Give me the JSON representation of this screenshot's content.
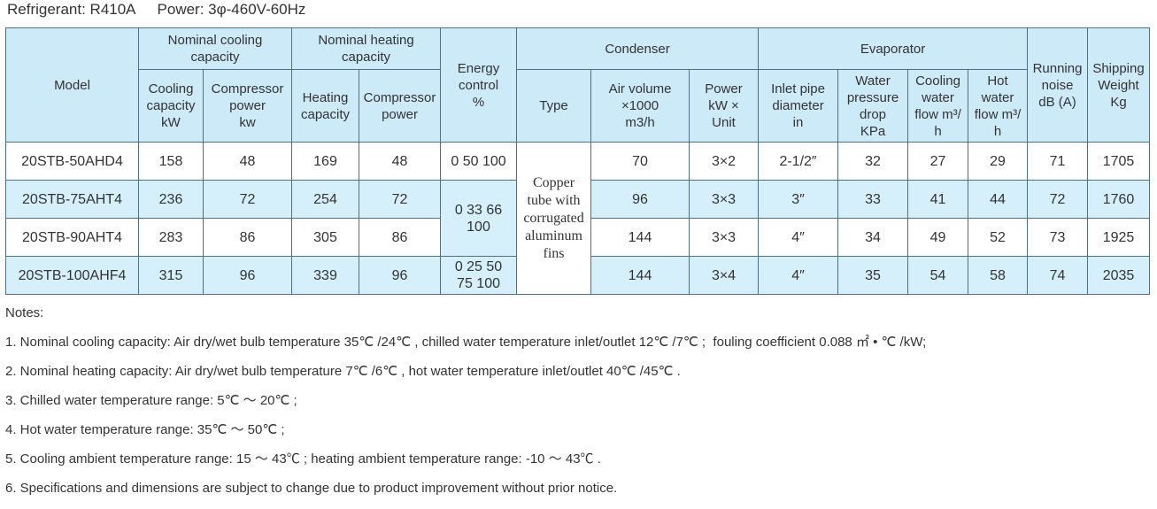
{
  "header": {
    "refrigerant": "Refrigerant: R410A",
    "power": "Power: 3φ-460V-60Hz"
  },
  "table": {
    "header": [
      [
        "Model",
        "Nominal cooling\ncapacity",
        "Nominal heating\ncapacity",
        "Energy\ncontrol\n%",
        "Condenser",
        "Evaporator",
        "Running\nnoise\ndB (A)",
        "Shipping\nWeight\nKg"
      ],
      [
        "Cooling\ncapacity\nkW",
        "Compressor\npower\nkw",
        "Heating\ncapacity",
        "Compressor\npower",
        "Type",
        "Air volume\n×1000\nm3/h",
        "Power\nkW ×\nUnit",
        "Inlet pipe\ndiameter\nin",
        "Water\npressure\ndrop\nKPa",
        "Cooling\nwater\nflow m³/\nh",
        "Hot\nwater\nflow m³/\nh"
      ]
    ],
    "rows": [
      [
        "20STB-50AHD4",
        158,
        48,
        169,
        48,
        "0 50 100",
        "Copper\ntube with\ncorrugated\naluminum\nfins",
        70,
        "3×2",
        "2-1/2″",
        32,
        27,
        29,
        71,
        1705
      ],
      [
        "20STB-75AHT4",
        236,
        72,
        254,
        72,
        "0 33 66\n100",
        96,
        "3×3",
        "3″",
        33,
        41,
        44,
        72,
        1760
      ],
      [
        "20STB-90AHT4",
        283,
        86,
        305,
        86,
        144,
        "3×3",
        "4″",
        34,
        49,
        52,
        73,
        1925
      ],
      [
        "20STB-100AHF4",
        315,
        96,
        339,
        96,
        "0  25  50\n75  100",
        144,
        "3×4",
        "4″",
        35,
        54,
        58,
        74,
        2035
      ]
    ]
  },
  "notes": {
    "heading": "Notes:",
    "items": [
      "1. Nominal cooling capacity: Air dry/wet bulb temperature 35℃ /24℃ , chilled water temperature inlet/outlet 12℃ /7℃ ;  fouling coefficient 0.088 ㎡ • ℃ /kW;",
      "2. Nominal heating capacity: Air dry/wet bulb temperature 7℃ /6℃ , hot water temperature inlet/outlet 40℃ /45℃ .",
      "3. Chilled water temperature range: 5℃ ～ 20℃ ;",
      "4. Hot water temperature range: 35℃ ～ 50℃ ;",
      "5. Cooling ambient temperature range: 15 ～ 43℃ ; heating ambient temperature range: -10 ～ 43℃ .",
      "6. Specifications and dimensions are subject to change due to product improvement without prior notice."
    ]
  }
}
